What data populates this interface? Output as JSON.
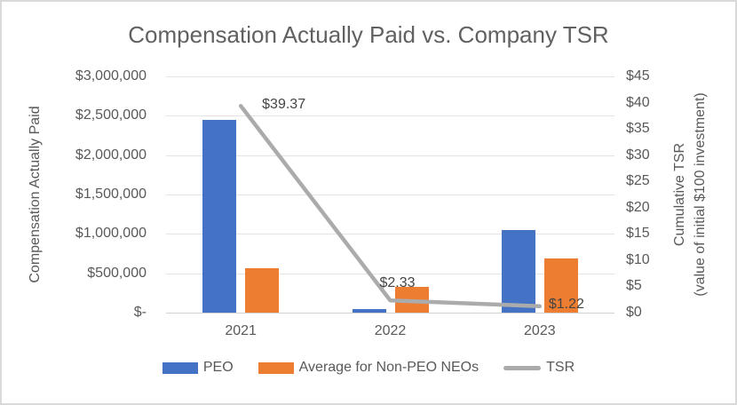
{
  "title": "Compensation Actually Paid vs. Company TSR",
  "left_axis": {
    "title": "Compensation Actually Paid",
    "ticks": [
      "$3,000,000",
      "$2,500,000",
      "$2,000,000",
      "$1,500,000",
      "$1,000,000",
      "$500,000",
      "$-"
    ]
  },
  "right_axis": {
    "title_line1": "Cumulative TSR",
    "title_line2": "(value of initial $100 investment)",
    "ticks": [
      "$45",
      "$40",
      "$35",
      "$30",
      "$25",
      "$20",
      "$15",
      "$10",
      "$5",
      "$0"
    ]
  },
  "x_axis": {
    "categories": [
      "2021",
      "2022",
      "2023"
    ]
  },
  "legend": {
    "items": [
      {
        "label": "PEO",
        "type": "bar",
        "color": "#4472C4"
      },
      {
        "label": "Average for Non-PEO NEOs",
        "type": "bar",
        "color": "#ED7D31"
      },
      {
        "label": "TSR",
        "type": "line",
        "color": "#ABABAB"
      }
    ]
  },
  "colors": {
    "peo_bar": "#4472C4",
    "neo_bar": "#ED7D31",
    "tsr_line": "#ABABAB",
    "text": "#595959",
    "gridline": "#E4E4E4",
    "baseline": "#D2D2D2",
    "border": "#D9D9D9"
  },
  "chart_data": {
    "type": "bar",
    "title": "Compensation Actually Paid vs. Company TSR",
    "categories": [
      "2021",
      "2022",
      "2023"
    ],
    "series": [
      {
        "name": "PEO",
        "type": "bar",
        "axis": "left",
        "color": "#4472C4",
        "values": [
          2450000,
          50000,
          1050000
        ]
      },
      {
        "name": "Average for Non-PEO NEOs",
        "type": "bar",
        "axis": "left",
        "color": "#ED7D31",
        "values": [
          560000,
          330000,
          690000
        ]
      },
      {
        "name": "TSR",
        "type": "line",
        "axis": "right",
        "color": "#ABABAB",
        "values": [
          39.37,
          2.33,
          1.22
        ],
        "labels": [
          "$39.37",
          "$2.33",
          "$1.22"
        ]
      }
    ],
    "left_ylabel": "Compensation Actually Paid",
    "right_ylabel": "Cumulative TSR (value of initial $100 investment)",
    "left_ylim": [
      0,
      3000000
    ],
    "right_ylim": [
      0,
      45
    ],
    "grid": true,
    "legend_position": "bottom"
  }
}
